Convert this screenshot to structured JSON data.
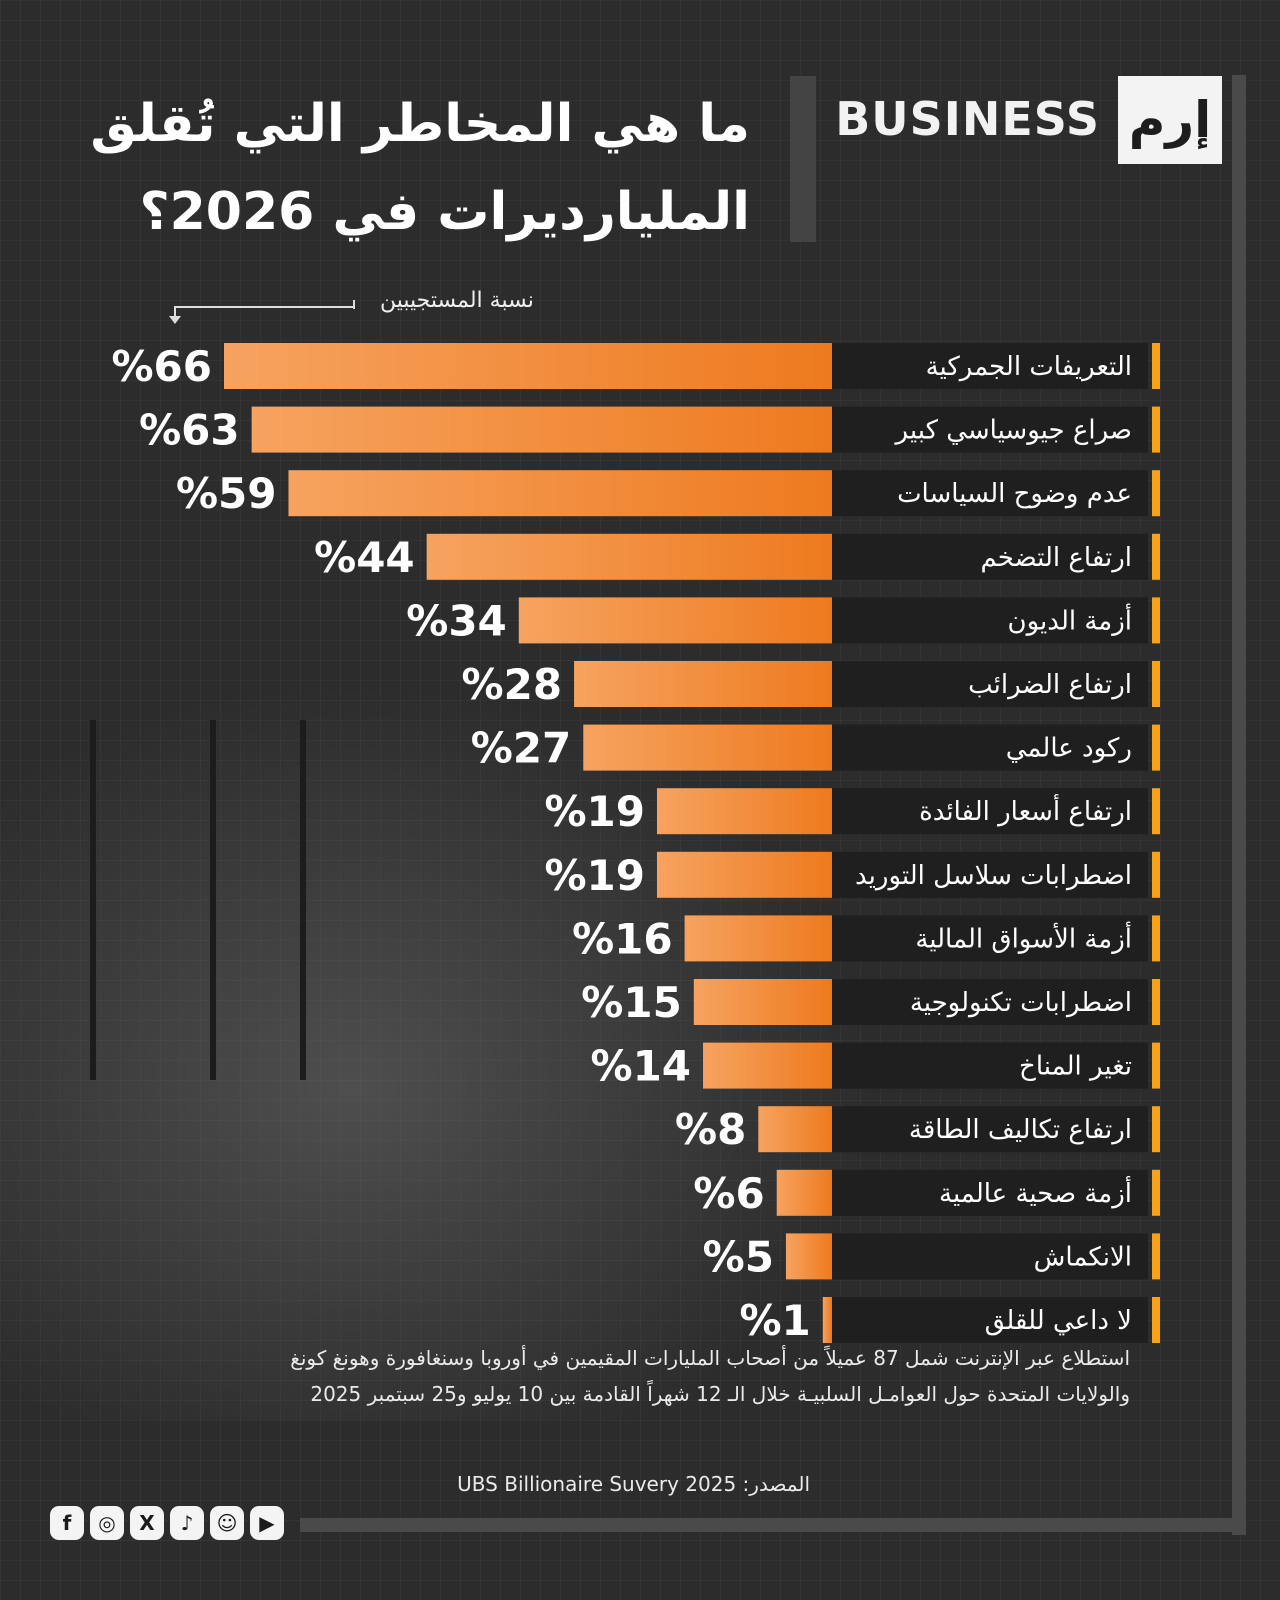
{
  "brand": {
    "logo_text": "إرم",
    "word": "BUSINESS"
  },
  "title": {
    "line1": "ما هي المخاطر التي تُقلق",
    "line2": "المليارديرات في 2026؟"
  },
  "respondents_label": "نسبة المستجيبين",
  "chart_data": {
    "type": "bar",
    "orientation": "horizontal",
    "categories": [
      "التعريفات الجمركية",
      "صراع جيوسياسي كبير",
      "عدم وضوح السياسات",
      "ارتفاع التضخم",
      "أزمة الديون",
      "ارتفاع الضرائب",
      "ركود عالمي",
      "ارتفاع أسعار الفائدة",
      "اضطرابات سلاسل التوريد",
      "أزمة الأسواق المالية",
      "اضطرابات تكنولوجية",
      "تغير المناخ",
      "ارتفاع تكاليف الطاقة",
      "أزمة صحية عالمية",
      "الانكماش",
      "لا داعي للقلق"
    ],
    "values": [
      66,
      63,
      59,
      44,
      34,
      28,
      27,
      19,
      19,
      16,
      15,
      14,
      8,
      6,
      5,
      1
    ],
    "value_labels": [
      "%66",
      "%63",
      "%59",
      "%44",
      "%34",
      "%28",
      "%27",
      "%19",
      "%19",
      "%16",
      "%15",
      "%14",
      "%8",
      "%6",
      "%5",
      "%1"
    ],
    "xlim": [
      0,
      66
    ],
    "bar_color": "#f08a30",
    "accent_color": "#f7a21b"
  },
  "note": {
    "line1": "استطلاع عبر الإنترنت شمل 87 عميلاً من أصحاب المليارات المقيمين في أوروبا وسنغافورة وهونغ كونغ",
    "line2": "والولايات المتحدة حول العوامـل السلبيـة خلال الـ 12 شهراً القادمة بين 10 يوليو و25 سبتمبر 2025"
  },
  "source": {
    "label": "المصدر:",
    "text": "UBS Billionaire Suvery 2025"
  },
  "socials": [
    {
      "icon": "facebook-icon",
      "glyph": "f"
    },
    {
      "icon": "instagram-icon",
      "glyph": "◎"
    },
    {
      "icon": "x-icon",
      "glyph": "X"
    },
    {
      "icon": "tiktok-icon",
      "glyph": "♪"
    },
    {
      "icon": "snapchat-icon",
      "glyph": "☺"
    },
    {
      "icon": "youtube-icon",
      "glyph": "▶"
    }
  ]
}
